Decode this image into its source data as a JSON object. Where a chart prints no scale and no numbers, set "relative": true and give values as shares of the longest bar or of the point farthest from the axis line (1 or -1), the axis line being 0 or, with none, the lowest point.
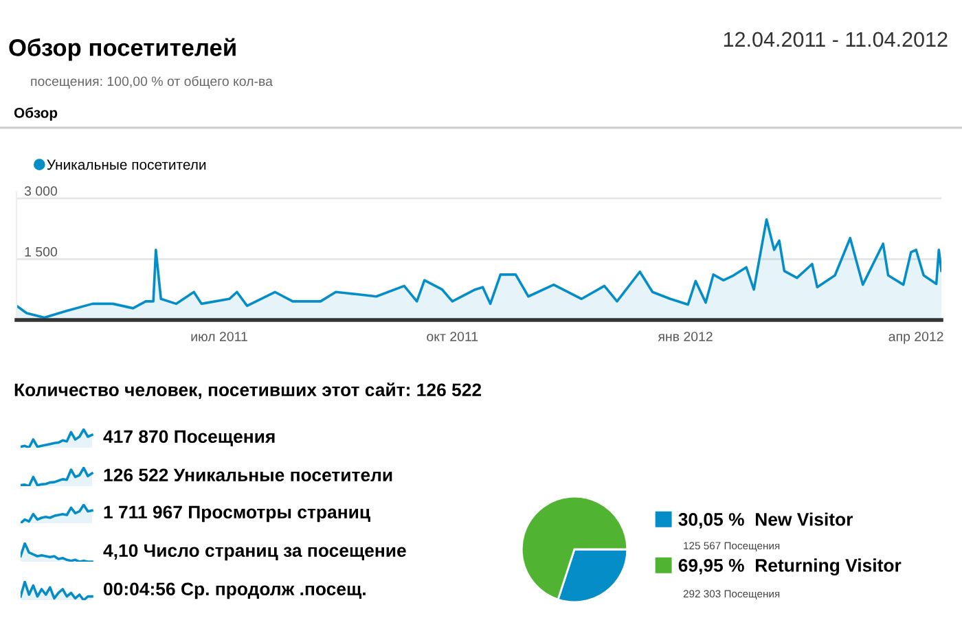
{
  "chart_data": [
    {
      "type": "area",
      "title": "Обзор посетителей",
      "subtitle": "12.04.2011 - 11.04.2012",
      "annotations": [
        "посещения: 100,00 % от общего кол-ва",
        "Обзор",
        "Количество человек, посетивших этот сайт: 126 522"
      ],
      "x": [
        "2011-04-12",
        "2011-04-16",
        "2011-04-23",
        "2011-05-02",
        "2011-05-12",
        "2011-05-20",
        "2011-05-28",
        "2011-06-02",
        "2011-06-05",
        "2011-06-06",
        "2011-06-08",
        "2011-06-14",
        "2011-06-21",
        "2011-06-24",
        "2011-07-05",
        "2011-07-08",
        "2011-07-12",
        "2011-07-23",
        "2011-07-30",
        "2011-08-10",
        "2011-08-16",
        "2011-08-25",
        "2011-09-01",
        "2011-09-12",
        "2011-09-17",
        "2011-09-20",
        "2011-09-27",
        "2011-10-01",
        "2011-10-10",
        "2011-10-13",
        "2011-10-16",
        "2011-10-20",
        "2011-10-26",
        "2011-10-31",
        "2011-11-10",
        "2011-11-21",
        "2011-11-30",
        "2011-12-05",
        "2011-12-14",
        "2011-12-19",
        "2011-12-26",
        "2012-01-02",
        "2012-01-05",
        "2012-01-09",
        "2012-01-12",
        "2012-01-16",
        "2012-01-20",
        "2012-01-25",
        "2012-01-28",
        "2012-02-02",
        "2012-02-05",
        "2012-02-07",
        "2012-02-09",
        "2012-02-14",
        "2012-02-20",
        "2012-02-22",
        "2012-02-29",
        "2012-03-06",
        "2012-03-11",
        "2012-03-19",
        "2012-03-21",
        "2012-03-27",
        "2012-03-30",
        "2012-04-01",
        "2012-04-04",
        "2012-04-09",
        "2012-04-10",
        "2012-04-11"
      ],
      "series": [
        {
          "name": "Уникальные посетители",
          "color": "#058dc7",
          "values": [
            350,
            170,
            60,
            230,
            400,
            400,
            290,
            460,
            460,
            1730,
            520,
            400,
            690,
            400,
            520,
            690,
            350,
            690,
            460,
            460,
            690,
            630,
            580,
            840,
            460,
            980,
            750,
            460,
            750,
            810,
            400,
            1120,
            1120,
            580,
            870,
            520,
            840,
            460,
            1190,
            690,
            520,
            380,
            960,
            430,
            1120,
            980,
            1100,
            1300,
            750,
            2480,
            1730,
            1960,
            1210,
            1040,
            1380,
            810,
            1100,
            2020,
            870,
            1880,
            1100,
            870,
            1670,
            1730,
            1100,
            890,
            1730,
            1210
          ]
        }
      ],
      "xlim": [
        "2011-04-12",
        "2012-04-11"
      ],
      "ylim": [
        0,
        3150
      ],
      "xticks": [
        {
          "value": "2011-07-01",
          "label": "июл 2011"
        },
        {
          "value": "2011-10-01",
          "label": "окт 2011"
        },
        {
          "value": "2012-01-01",
          "label": "янв 2012"
        },
        {
          "value": "2012-04-01",
          "label": "апр 2012"
        }
      ],
      "yticks": [
        {
          "value": 1500,
          "label": "1 500"
        },
        {
          "value": 3000,
          "label": "3 000"
        }
      ],
      "grid": "y",
      "legend": "top left",
      "marker": "none"
    },
    {
      "type": "area",
      "relative": true,
      "annotations": [
        "417 870 Посещения"
      ],
      "categories": [
        null,
        null,
        null,
        null,
        null,
        null,
        null,
        null,
        null,
        null,
        null,
        null,
        null,
        null,
        null,
        null,
        null,
        null
      ],
      "series": [
        {
          "color": "#058dc7",
          "values": [
            0.05,
            0.1,
            0,
            0.45,
            0.05,
            0.1,
            0.15,
            0.2,
            0.25,
            0.28,
            0.4,
            0.35,
            0.85,
            0.45,
            0.6,
            1.0,
            0.6,
            0.7
          ]
        }
      ]
    },
    {
      "type": "area",
      "relative": true,
      "annotations": [
        "126 522 Уникальные посетители"
      ],
      "categories": [
        null,
        null,
        null,
        null,
        null,
        null,
        null,
        null,
        null,
        null,
        null,
        null,
        null,
        null,
        null,
        null,
        null,
        null
      ],
      "series": [
        {
          "color": "#058dc7",
          "values": [
            0.05,
            0.08,
            0,
            0.5,
            0.05,
            0.1,
            0.12,
            0.2,
            0.22,
            0.3,
            0.38,
            0.35,
            0.9,
            0.5,
            0.6,
            1.0,
            0.55,
            0.7
          ]
        }
      ]
    },
    {
      "type": "area",
      "relative": true,
      "annotations": [
        "1 711 967 Просмотры страниц"
      ],
      "categories": [
        null,
        null,
        null,
        null,
        null,
        null,
        null,
        null,
        null,
        null,
        null,
        null,
        null,
        null,
        null,
        null,
        null,
        null
      ],
      "series": [
        {
          "color": "#058dc7",
          "values": [
            0,
            0.2,
            0.1,
            0.5,
            0.2,
            0.3,
            0.35,
            0.3,
            0.4,
            0.45,
            0.5,
            0.45,
            0.85,
            0.55,
            0.65,
            1.0,
            0.65,
            0.7
          ]
        }
      ]
    },
    {
      "type": "area",
      "relative": true,
      "annotations": [
        "4,10 Число страниц за посещение"
      ],
      "categories": [
        null,
        null,
        null,
        null,
        null,
        null,
        null,
        null,
        null,
        null,
        null,
        null,
        null,
        null,
        null,
        null,
        null,
        null
      ],
      "series": [
        {
          "color": "#058dc7",
          "values": [
            0.3,
            1.0,
            0.5,
            0.4,
            0.3,
            0.35,
            0.3,
            0.25,
            0.3,
            0.15,
            0.2,
            0.1,
            0.05,
            0.1,
            0,
            0.05,
            0,
            0
          ]
        }
      ]
    },
    {
      "type": "area",
      "relative": true,
      "annotations": [
        "00:04:56 Ср. продолж .посещ."
      ],
      "categories": [
        null,
        null,
        null,
        null,
        null,
        null,
        null,
        null,
        null,
        null,
        null,
        null,
        null,
        null,
        null,
        null,
        null,
        null
      ],
      "series": [
        {
          "color": "#058dc7",
          "values": [
            0.2,
            1.0,
            0.3,
            0.8,
            0.2,
            0.6,
            0.3,
            0.7,
            0.1,
            0.4,
            0.6,
            0.2,
            0.4,
            0.1,
            0.3,
            0,
            0.2,
            0.2
          ]
        }
      ]
    },
    {
      "type": "pie",
      "categories": [
        "New Visitor",
        "Returning Visitor"
      ],
      "values": [
        30.05,
        69.95
      ],
      "colors": [
        "#058dc7",
        "#50b432"
      ],
      "value_labels": [
        "30,05 %",
        "69,95 %"
      ],
      "annotations": [
        "125 567 Посещения",
        "292 303 Посещения"
      ],
      "legend": "right"
    }
  ]
}
